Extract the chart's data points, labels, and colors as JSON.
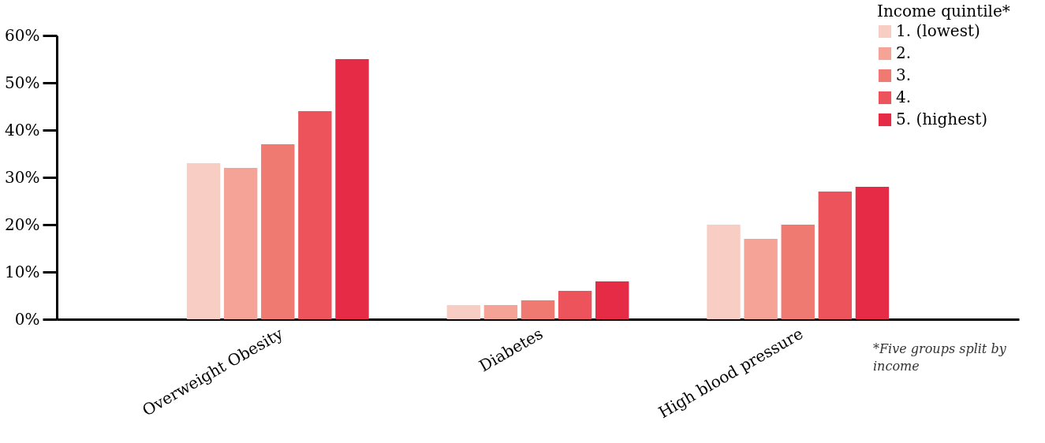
{
  "chart_data": {
    "type": "bar",
    "categories": [
      "Overweight Obesity",
      "Diabetes",
      "High blood pressure"
    ],
    "legend_title": "Income quintile*",
    "series": [
      {
        "name": "1. (lowest)",
        "color": "#f8cdc3",
        "values": [
          33,
          3,
          20
        ]
      },
      {
        "name": "2.",
        "color": "#f4a396",
        "values": [
          32,
          3,
          17
        ]
      },
      {
        "name": "3.",
        "color": "#ef7a72",
        "values": [
          37,
          4,
          20
        ]
      },
      {
        "name": "4.",
        "color": "#ec535a",
        "values": [
          44,
          6,
          27
        ]
      },
      {
        "name": "5. (highest)",
        "color": "#e52b45",
        "values": [
          55,
          8,
          28
        ]
      }
    ],
    "ylim": [
      0,
      60
    ],
    "yticks": [
      {
        "value": 0,
        "label": "0%"
      },
      {
        "value": 10,
        "label": "10%"
      },
      {
        "value": 20,
        "label": "20%"
      },
      {
        "value": 30,
        "label": "30%"
      },
      {
        "value": 40,
        "label": "40%"
      },
      {
        "value": 50,
        "label": "50%"
      },
      {
        "value": 60,
        "label": "60%"
      }
    ],
    "annotations": [
      "*Five groups split by income"
    ],
    "legend": "top right",
    "grid": false
  }
}
